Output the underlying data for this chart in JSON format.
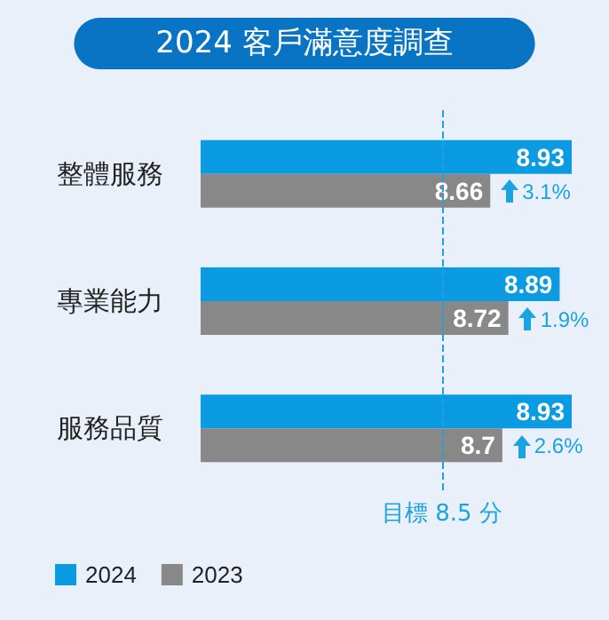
{
  "chart_data": {
    "type": "bar",
    "orientation": "horizontal",
    "title": "2024 客戶滿意度調查",
    "categories": [
      "整體服務",
      "專業能力",
      "服務品質"
    ],
    "series": [
      {
        "name": "2024",
        "color": "#0a9be3",
        "values": [
          8.93,
          8.89,
          8.93
        ]
      },
      {
        "name": "2023",
        "color": "#888888",
        "values": [
          8.66,
          8.72,
          8.7
        ]
      }
    ],
    "xlim": [
      7.7,
      8.93
    ],
    "tick_labels": "y",
    "data_labels": true,
    "grid": false,
    "legend": "bottom left",
    "ref_lines": [
      {
        "axis": "x",
        "value": 8.5,
        "label": "目標 8.5 分",
        "color": "#1aa3e0",
        "line_style": "dashed"
      }
    ],
    "annotations": [
      "3.1%",
      "1.9%",
      "2.6%"
    ]
  }
}
